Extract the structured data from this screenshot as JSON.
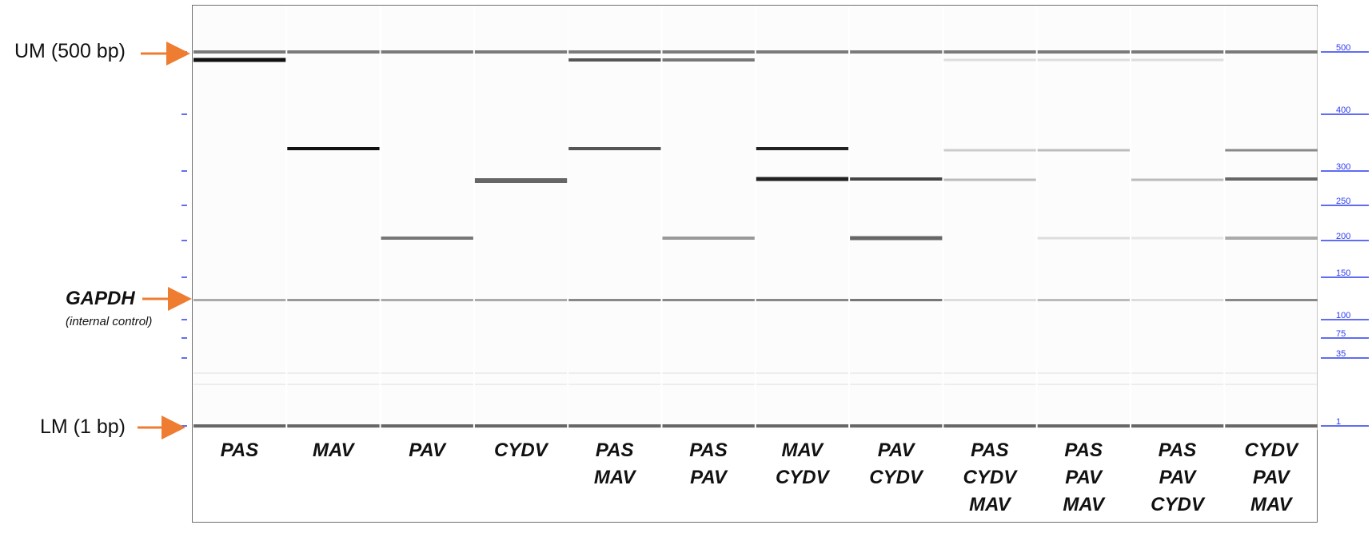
{
  "markers": {
    "upper": "UM (500 bp)",
    "gapdh_title": "GAPDH",
    "gapdh_subtitle": "(internal control)",
    "lower": "LM (1 bp)"
  },
  "ladder": {
    "color": "#2b3cf0",
    "ticks": [
      {
        "label": "500",
        "value": 500
      },
      {
        "label": "400",
        "value": 400
      },
      {
        "label": "300",
        "value": 300
      },
      {
        "label": "250",
        "value": 250
      },
      {
        "label": "200",
        "value": 200
      },
      {
        "label": "150",
        "value": 150
      },
      {
        "label": "100",
        "value": 100
      },
      {
        "label": "75",
        "value": 75
      },
      {
        "label": "35",
        "value": 35
      },
      {
        "label": "1",
        "value": 1
      }
    ]
  },
  "arrow_color": "#ee7d31",
  "lanes": [
    {
      "labels": [
        "PAS"
      ]
    },
    {
      "labels": [
        "MAV"
      ]
    },
    {
      "labels": [
        "PAV"
      ]
    },
    {
      "labels": [
        "CYDV"
      ]
    },
    {
      "labels": [
        "PAS",
        "MAV"
      ]
    },
    {
      "labels": [
        "PAS",
        "PAV"
      ]
    },
    {
      "labels": [
        "MAV",
        "CYDV"
      ]
    },
    {
      "labels": [
        "PAV",
        "CYDV"
      ]
    },
    {
      "labels": [
        "PAS",
        "CYDV",
        "MAV"
      ]
    },
    {
      "labels": [
        "PAS",
        "PAV",
        "MAV"
      ]
    },
    {
      "labels": [
        "PAS",
        "PAV",
        "CYDV"
      ]
    },
    {
      "labels": [
        "CYDV",
        "PAV",
        "MAV"
      ]
    }
  ]
}
